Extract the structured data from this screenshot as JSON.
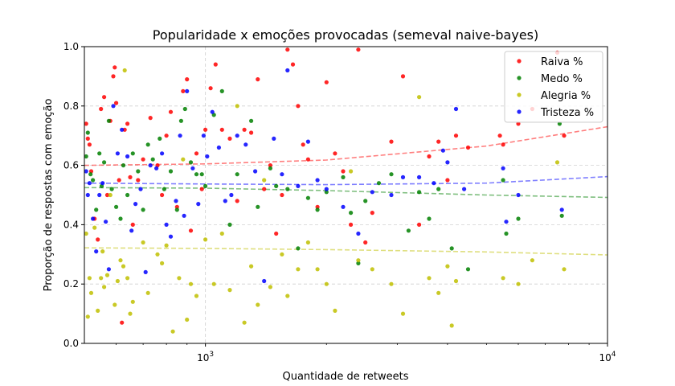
{
  "chart_data": {
    "type": "scatter",
    "title": "Popularidade x emoções provocadas (semeval naive-bayes)",
    "xlabel": "Quantidade de retweets",
    "ylabel": "Proporção de respostas com emoção",
    "xscale": "log",
    "xlim": [
      500,
      10000
    ],
    "ylim": [
      0.0,
      1.0
    ],
    "x_ticks": [
      {
        "value": 1000,
        "base": "10",
        "exp": "3"
      },
      {
        "value": 10000,
        "base": "10",
        "exp": "4"
      }
    ],
    "y_ticks": [
      "0.0",
      "0.2",
      "0.4",
      "0.6",
      "0.8",
      "1.0"
    ],
    "grid": true,
    "legend_position": "top-right",
    "series": [
      {
        "name": "Raiva %",
        "color": "#ff0000",
        "trend": [
          [
            500,
            0.6
          ],
          [
            1000,
            0.605
          ],
          [
            2000,
            0.618
          ],
          [
            5000,
            0.665
          ],
          [
            10000,
            0.73
          ]
        ],
        "points": [
          [
            505,
            0.74
          ],
          [
            510,
            0.69
          ],
          [
            515,
            0.67
          ],
          [
            520,
            0.58
          ],
          [
            530,
            0.42
          ],
          [
            540,
            0.35
          ],
          [
            550,
            0.79
          ],
          [
            560,
            0.83
          ],
          [
            570,
            0.5
          ],
          [
            580,
            0.75
          ],
          [
            590,
            0.9
          ],
          [
            595,
            0.93
          ],
          [
            600,
            0.81
          ],
          [
            610,
            0.55
          ],
          [
            620,
            0.07
          ],
          [
            630,
            0.72
          ],
          [
            640,
            0.74
          ],
          [
            650,
            0.56
          ],
          [
            660,
            0.4
          ],
          [
            680,
            0.55
          ],
          [
            700,
            0.62
          ],
          [
            730,
            0.76
          ],
          [
            760,
            0.6
          ],
          [
            780,
            0.5
          ],
          [
            800,
            0.7
          ],
          [
            820,
            0.78
          ],
          [
            850,
            0.46
          ],
          [
            880,
            0.85
          ],
          [
            900,
            0.89
          ],
          [
            920,
            0.38
          ],
          [
            950,
            0.64
          ],
          [
            980,
            0.52
          ],
          [
            1000,
            0.72
          ],
          [
            1030,
            0.86
          ],
          [
            1060,
            0.94
          ],
          [
            1100,
            0.72
          ],
          [
            1150,
            0.69
          ],
          [
            1200,
            0.48
          ],
          [
            1250,
            0.72
          ],
          [
            1300,
            0.71
          ],
          [
            1350,
            0.89
          ],
          [
            1400,
            0.52
          ],
          [
            1450,
            0.6
          ],
          [
            1500,
            0.37
          ],
          [
            1550,
            0.5
          ],
          [
            1600,
            0.99
          ],
          [
            1650,
            0.94
          ],
          [
            1700,
            0.8
          ],
          [
            1750,
            0.67
          ],
          [
            1800,
            0.62
          ],
          [
            1900,
            0.46
          ],
          [
            2000,
            0.88
          ],
          [
            2100,
            0.64
          ],
          [
            2200,
            0.58
          ],
          [
            2300,
            0.4
          ],
          [
            2400,
            0.99
          ],
          [
            2500,
            0.34
          ],
          [
            2600,
            0.44
          ],
          [
            2900,
            0.68
          ],
          [
            3100,
            0.9
          ],
          [
            3400,
            0.4
          ],
          [
            3600,
            0.63
          ],
          [
            3800,
            0.68
          ],
          [
            4000,
            0.55
          ],
          [
            4200,
            0.7
          ],
          [
            4500,
            0.66
          ],
          [
            5400,
            0.7
          ],
          [
            5500,
            0.67
          ],
          [
            6000,
            0.74
          ],
          [
            6500,
            0.79
          ],
          [
            7500,
            0.98
          ],
          [
            7800,
            0.7
          ]
        ]
      },
      {
        "name": "Medo %",
        "color": "#008000",
        "trend": [
          [
            500,
            0.525
          ],
          [
            1000,
            0.523
          ],
          [
            2000,
            0.515
          ],
          [
            5000,
            0.5
          ],
          [
            10000,
            0.492
          ]
        ],
        "points": [
          [
            505,
            0.63
          ],
          [
            510,
            0.71
          ],
          [
            518,
            0.57
          ],
          [
            525,
            0.55
          ],
          [
            535,
            0.45
          ],
          [
            545,
            0.64
          ],
          [
            552,
            0.53
          ],
          [
            560,
            0.61
          ],
          [
            575,
            0.75
          ],
          [
            585,
            0.52
          ],
          [
            600,
            0.46
          ],
          [
            615,
            0.42
          ],
          [
            625,
            0.6
          ],
          [
            640,
            0.5
          ],
          [
            660,
            0.64
          ],
          [
            680,
            0.58
          ],
          [
            700,
            0.45
          ],
          [
            720,
            0.67
          ],
          [
            740,
            0.62
          ],
          [
            770,
            0.69
          ],
          [
            790,
            0.52
          ],
          [
            820,
            0.58
          ],
          [
            850,
            0.45
          ],
          [
            870,
            0.75
          ],
          [
            890,
            0.79
          ],
          [
            920,
            0.61
          ],
          [
            950,
            0.57
          ],
          [
            980,
            0.57
          ],
          [
            1000,
            0.53
          ],
          [
            1050,
            0.77
          ],
          [
            1100,
            0.85
          ],
          [
            1150,
            0.4
          ],
          [
            1200,
            0.57
          ],
          [
            1300,
            0.75
          ],
          [
            1350,
            0.46
          ],
          [
            1450,
            0.59
          ],
          [
            1500,
            0.53
          ],
          [
            1600,
            0.52
          ],
          [
            1700,
            0.32
          ],
          [
            1800,
            0.49
          ],
          [
            1900,
            0.45
          ],
          [
            2000,
            0.51
          ],
          [
            2200,
            0.56
          ],
          [
            2300,
            0.44
          ],
          [
            2400,
            0.27
          ],
          [
            2500,
            0.48
          ],
          [
            2700,
            0.54
          ],
          [
            2900,
            0.57
          ],
          [
            3200,
            0.38
          ],
          [
            3400,
            0.51
          ],
          [
            3600,
            0.42
          ],
          [
            3800,
            0.52
          ],
          [
            4100,
            0.32
          ],
          [
            4500,
            0.25
          ],
          [
            5500,
            0.55
          ],
          [
            5600,
            0.37
          ],
          [
            6000,
            0.42
          ],
          [
            7600,
            0.74
          ],
          [
            7700,
            0.43
          ]
        ]
      },
      {
        "name": "Alegria %",
        "color": "#bfbf00",
        "trend": [
          [
            500,
            0.322
          ],
          [
            1000,
            0.32
          ],
          [
            2000,
            0.316
          ],
          [
            5000,
            0.308
          ],
          [
            10000,
            0.298
          ]
        ],
        "points": [
          [
            505,
            0.37
          ],
          [
            510,
            0.09
          ],
          [
            515,
            0.22
          ],
          [
            520,
            0.17
          ],
          [
            530,
            0.39
          ],
          [
            540,
            0.11
          ],
          [
            550,
            0.22
          ],
          [
            555,
            0.31
          ],
          [
            560,
            0.19
          ],
          [
            570,
            0.23
          ],
          [
            580,
            0.5
          ],
          [
            595,
            0.13
          ],
          [
            605,
            0.21
          ],
          [
            615,
            0.28
          ],
          [
            625,
            0.26
          ],
          [
            630,
            0.92
          ],
          [
            640,
            0.22
          ],
          [
            650,
            0.1
          ],
          [
            660,
            0.14
          ],
          [
            700,
            0.34
          ],
          [
            720,
            0.17
          ],
          [
            760,
            0.3
          ],
          [
            780,
            0.27
          ],
          [
            800,
            0.33
          ],
          [
            830,
            0.04
          ],
          [
            860,
            0.22
          ],
          [
            880,
            0.62
          ],
          [
            900,
            0.08
          ],
          [
            920,
            0.2
          ],
          [
            950,
            0.16
          ],
          [
            1000,
            0.35
          ],
          [
            1050,
            0.2
          ],
          [
            1100,
            0.37
          ],
          [
            1150,
            0.18
          ],
          [
            1200,
            0.8
          ],
          [
            1250,
            0.07
          ],
          [
            1300,
            0.26
          ],
          [
            1350,
            0.13
          ],
          [
            1400,
            0.55
          ],
          [
            1450,
            0.19
          ],
          [
            1550,
            0.3
          ],
          [
            1600,
            0.16
          ],
          [
            1700,
            0.25
          ],
          [
            1800,
            0.34
          ],
          [
            1900,
            0.25
          ],
          [
            2000,
            0.2
          ],
          [
            2100,
            0.11
          ],
          [
            2300,
            0.58
          ],
          [
            2400,
            0.28
          ],
          [
            2600,
            0.25
          ],
          [
            2900,
            0.2
          ],
          [
            3100,
            0.1
          ],
          [
            3400,
            0.83
          ],
          [
            3600,
            0.22
          ],
          [
            3800,
            0.17
          ],
          [
            4000,
            0.26
          ],
          [
            4100,
            0.06
          ],
          [
            4200,
            0.21
          ],
          [
            5500,
            0.22
          ],
          [
            6000,
            0.2
          ],
          [
            6500,
            0.28
          ],
          [
            7500,
            0.61
          ],
          [
            7800,
            0.25
          ]
        ]
      },
      {
        "name": "Tristeza %",
        "color": "#0000ff",
        "trend": [
          [
            500,
            0.54
          ],
          [
            1000,
            0.537
          ],
          [
            2000,
            0.535
          ],
          [
            5000,
            0.54
          ],
          [
            10000,
            0.562
          ]
        ],
        "points": [
          [
            505,
            0.58
          ],
          [
            510,
            0.5
          ],
          [
            515,
            0.54
          ],
          [
            525,
            0.42
          ],
          [
            535,
            0.31
          ],
          [
            545,
            0.5
          ],
          [
            555,
            0.54
          ],
          [
            565,
            0.41
          ],
          [
            575,
            0.25
          ],
          [
            590,
            0.8
          ],
          [
            605,
            0.64
          ],
          [
            620,
            0.72
          ],
          [
            640,
            0.63
          ],
          [
            655,
            0.38
          ],
          [
            670,
            0.47
          ],
          [
            690,
            0.52
          ],
          [
            710,
            0.24
          ],
          [
            730,
            0.6
          ],
          [
            755,
            0.59
          ],
          [
            780,
            0.64
          ],
          [
            800,
            0.4
          ],
          [
            820,
            0.36
          ],
          [
            845,
            0.48
          ],
          [
            865,
            0.7
          ],
          [
            885,
            0.43
          ],
          [
            900,
            0.85
          ],
          [
            930,
            0.59
          ],
          [
            960,
            0.47
          ],
          [
            990,
            0.7
          ],
          [
            1010,
            0.63
          ],
          [
            1040,
            0.78
          ],
          [
            1080,
            0.66
          ],
          [
            1120,
            0.48
          ],
          [
            1160,
            0.5
          ],
          [
            1200,
            0.7
          ],
          [
            1260,
            0.67
          ],
          [
            1330,
            0.58
          ],
          [
            1400,
            0.21
          ],
          [
            1480,
            0.69
          ],
          [
            1550,
            0.57
          ],
          [
            1600,
            0.92
          ],
          [
            1700,
            0.53
          ],
          [
            1800,
            0.68
          ],
          [
            1900,
            0.55
          ],
          [
            2000,
            0.52
          ],
          [
            2200,
            0.46
          ],
          [
            2400,
            0.37
          ],
          [
            2600,
            0.51
          ],
          [
            2900,
            0.5
          ],
          [
            3100,
            0.56
          ],
          [
            3400,
            0.56
          ],
          [
            3700,
            0.54
          ],
          [
            3900,
            0.65
          ],
          [
            4000,
            0.61
          ],
          [
            4200,
            0.79
          ],
          [
            4400,
            0.52
          ],
          [
            5500,
            0.59
          ],
          [
            5600,
            0.41
          ],
          [
            6000,
            0.5
          ],
          [
            7700,
            0.45
          ]
        ]
      }
    ]
  }
}
